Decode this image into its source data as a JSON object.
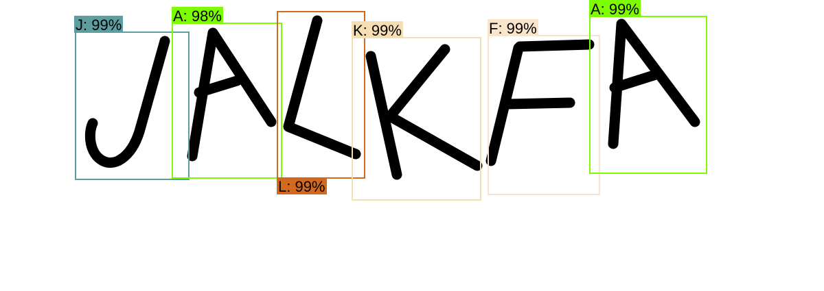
{
  "detections": [
    {
      "letter": "J",
      "label": "J: 99%",
      "color": "#5f9ea0"
    },
    {
      "letter": "A",
      "label": "A: 98%",
      "color": "#7cfc00"
    },
    {
      "letter": "L",
      "label": "L: 99%",
      "color": "#d2691e"
    },
    {
      "letter": "K",
      "label": "K: 99%",
      "color": "#f5deb3"
    },
    {
      "letter": "F",
      "label": "F: 99%",
      "color": "#fae4cb"
    },
    {
      "letter": "A",
      "label": "A: 99%",
      "color": "#7cfc00"
    }
  ]
}
